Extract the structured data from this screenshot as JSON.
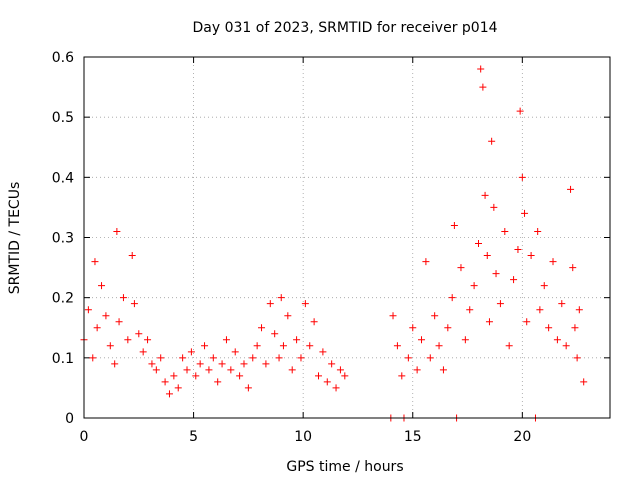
{
  "chart_data": {
    "type": "scatter",
    "title": "Day 031 of 2023, SRMTID for receiver p014",
    "xlabel": "GPS time / hours",
    "ylabel": "SRMTID / TECUs",
    "xlim": [
      0,
      24
    ],
    "ylim": [
      0,
      0.6
    ],
    "xticks": [
      0,
      5,
      10,
      15,
      20
    ],
    "xtick_labels": [
      "0",
      "5",
      "10",
      "15",
      "20"
    ],
    "yticks": [
      0,
      0.1,
      0.2,
      0.3,
      0.4,
      0.5,
      0.6
    ],
    "ytick_labels": [
      "0",
      "0.1",
      "0.2",
      "0.3",
      "0.4",
      "0.5",
      "0.6"
    ],
    "grid": true,
    "marker": "+",
    "color": "#ff0000",
    "series": [
      {
        "name": "p014",
        "x": [
          0.0,
          0.2,
          0.4,
          0.5,
          0.6,
          0.8,
          1.0,
          1.2,
          1.4,
          1.5,
          1.6,
          1.8,
          2.0,
          2.2,
          2.3,
          2.5,
          2.7,
          2.9,
          3.1,
          3.3,
          3.5,
          3.7,
          3.9,
          4.1,
          4.3,
          4.5,
          4.7,
          4.9,
          5.1,
          5.3,
          5.5,
          5.7,
          5.9,
          6.1,
          6.3,
          6.5,
          6.7,
          6.9,
          7.1,
          7.3,
          7.5,
          7.7,
          7.9,
          8.1,
          8.3,
          8.5,
          8.7,
          8.9,
          9.0,
          9.1,
          9.3,
          9.5,
          9.7,
          9.9,
          10.1,
          10.3,
          10.5,
          10.7,
          10.9,
          11.1,
          11.3,
          11.5,
          11.7,
          11.9,
          14.0,
          14.1,
          14.3,
          14.5,
          14.6,
          14.8,
          15.0,
          15.2,
          15.4,
          15.6,
          15.8,
          16.0,
          16.2,
          16.4,
          16.6,
          16.8,
          16.9,
          17.0,
          17.2,
          17.4,
          17.6,
          17.8,
          18.0,
          18.1,
          18.2,
          18.3,
          18.4,
          18.5,
          18.6,
          18.7,
          18.8,
          19.0,
          19.2,
          19.4,
          19.6,
          19.8,
          19.9,
          20.0,
          20.1,
          20.2,
          20.4,
          20.6,
          20.7,
          20.8,
          21.0,
          21.2,
          21.4,
          21.6,
          21.8,
          22.0,
          22.2,
          22.3,
          22.4,
          22.5,
          22.6,
          22.8
        ],
        "y": [
          0.13,
          0.18,
          0.1,
          0.26,
          0.15,
          0.22,
          0.17,
          0.12,
          0.09,
          0.31,
          0.16,
          0.2,
          0.13,
          0.27,
          0.19,
          0.14,
          0.11,
          0.13,
          0.09,
          0.08,
          0.1,
          0.06,
          0.04,
          0.07,
          0.05,
          0.1,
          0.08,
          0.11,
          0.07,
          0.09,
          0.12,
          0.08,
          0.1,
          0.06,
          0.09,
          0.13,
          0.08,
          0.11,
          0.07,
          0.09,
          0.05,
          0.1,
          0.12,
          0.15,
          0.09,
          0.19,
          0.14,
          0.1,
          0.2,
          0.12,
          0.17,
          0.08,
          0.13,
          0.1,
          0.19,
          0.12,
          0.16,
          0.07,
          0.11,
          0.06,
          0.09,
          0.05,
          0.08,
          0.07,
          0.0,
          0.17,
          0.12,
          0.07,
          0.0,
          0.1,
          0.15,
          0.08,
          0.13,
          0.26,
          0.1,
          0.17,
          0.12,
          0.08,
          0.15,
          0.2,
          0.32,
          0.0,
          0.25,
          0.13,
          0.18,
          0.22,
          0.29,
          0.58,
          0.55,
          0.37,
          0.27,
          0.16,
          0.46,
          0.35,
          0.24,
          0.19,
          0.31,
          0.12,
          0.23,
          0.28,
          0.51,
          0.4,
          0.34,
          0.16,
          0.27,
          0.0,
          0.31,
          0.18,
          0.22,
          0.15,
          0.26,
          0.13,
          0.19,
          0.12,
          0.38,
          0.25,
          0.15,
          0.1,
          0.18,
          0.06
        ]
      }
    ]
  }
}
